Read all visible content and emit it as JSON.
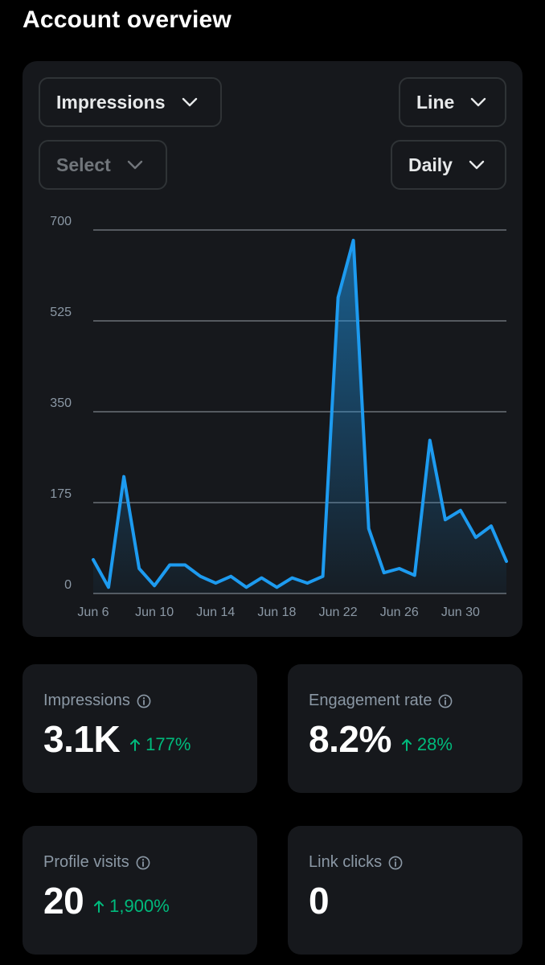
{
  "header": {
    "title": "Account overview"
  },
  "controls": {
    "metric": "Impressions",
    "chart_type": "Line",
    "compare": "Select",
    "interval": "Daily"
  },
  "chart_data": {
    "type": "area",
    "title": "",
    "xlabel": "",
    "ylabel": "",
    "ylim": [
      0,
      700
    ],
    "yticks": [
      0,
      175,
      350,
      525,
      700
    ],
    "xticks": [
      "Jun 6",
      "Jun 10",
      "Jun 14",
      "Jun 18",
      "Jun 22",
      "Jun 26",
      "Jun 30"
    ],
    "grid": true,
    "x": [
      "Jun 6",
      "Jun 7",
      "Jun 8",
      "Jun 9",
      "Jun 10",
      "Jun 11",
      "Jun 12",
      "Jun 13",
      "Jun 14",
      "Jun 15",
      "Jun 16",
      "Jun 17",
      "Jun 18",
      "Jun 19",
      "Jun 20",
      "Jun 21",
      "Jun 22",
      "Jun 23",
      "Jun 24",
      "Jun 25",
      "Jun 26",
      "Jun 27",
      "Jun 28",
      "Jun 29",
      "Jun 30",
      "Jun 31",
      "Jul 1",
      "Jul 2"
    ],
    "series": [
      {
        "color": "#1d9bf0",
        "values": [
          65,
          12,
          225,
          48,
          15,
          55,
          55,
          33,
          20,
          33,
          12,
          30,
          12,
          30,
          20,
          33,
          570,
          680,
          125,
          40,
          48,
          35,
          295,
          142,
          160,
          108,
          130,
          62
        ]
      }
    ]
  },
  "stats": [
    {
      "label": "Impressions",
      "value": "3.1K",
      "change": "177%"
    },
    {
      "label": "Engagement rate",
      "value": "8.2%",
      "change": "28%"
    },
    {
      "label": "Profile visits",
      "value": "20",
      "change": "1,900%"
    },
    {
      "label": "Link clicks",
      "value": "0",
      "change": ""
    }
  ],
  "icons": {
    "info": "info-icon",
    "arrow": "arrow-up-icon",
    "chevron": "chevron-down-icon"
  },
  "colors": {
    "accent": "#1d9bf0",
    "positive": "#00ba7c",
    "card": "#16181c"
  }
}
